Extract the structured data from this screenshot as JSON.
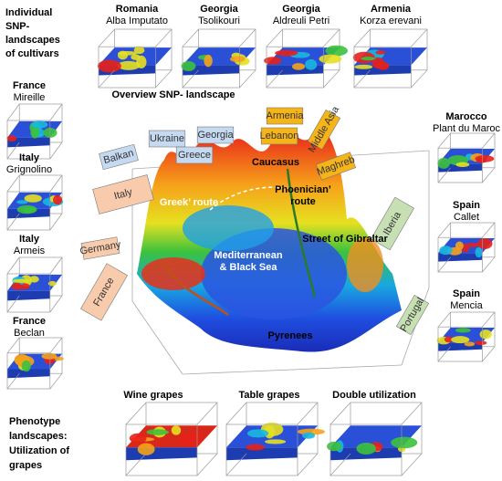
{
  "heading": {
    "lines": [
      "Individual",
      "SNP-",
      "landscapes",
      "of cultivars"
    ]
  },
  "cultivars": [
    {
      "country": "Romania",
      "name": "Alba Imputato"
    },
    {
      "country": "Georgia",
      "name": "Tsolikouri"
    },
    {
      "country": "Georgia",
      "name": "Aldreuli Petri"
    },
    {
      "country": "Armenia",
      "name": "Korza erevani"
    },
    {
      "country": "France",
      "name": "Mireille"
    },
    {
      "country": "Italy",
      "name": "Grignolino"
    },
    {
      "country": "Italy",
      "name": "Armeis"
    },
    {
      "country": "France",
      "name": "Beclan"
    },
    {
      "country": "Marocco",
      "name": "Plant du Maroc"
    },
    {
      "country": "Spain",
      "name": "Callet"
    },
    {
      "country": "Spain",
      "name": "Mencia"
    }
  ],
  "overview": {
    "title": "Overview SNP- landscape",
    "flags": [
      "Balkan",
      "Ukraine",
      "Georgia",
      "Greece",
      "Armenia",
      "Lebanon",
      "Middle Asia",
      "Maghreb",
      "Italy",
      "Germany",
      "France",
      "Iberia",
      "Portugal"
    ],
    "labels": [
      {
        "lines": [
          "Caucasus"
        ]
      },
      {
        "lines": [
          "Greek’ route"
        ]
      },
      {
        "lines": [
          "Phoenician’",
          "route"
        ]
      },
      {
        "lines": [
          "Street of Gibraltar"
        ]
      },
      {
        "lines": [
          "Mediterranean",
          "& Black Sea"
        ]
      },
      {
        "lines": [
          "Pyrenees"
        ]
      }
    ]
  },
  "phenotype": {
    "heading": {
      "lines": [
        "Phenotype",
        "landscapes:",
        "Utilization of",
        "grapes"
      ]
    },
    "panels": [
      "Wine grapes",
      "Table grapes",
      "Double utilization"
    ]
  }
}
